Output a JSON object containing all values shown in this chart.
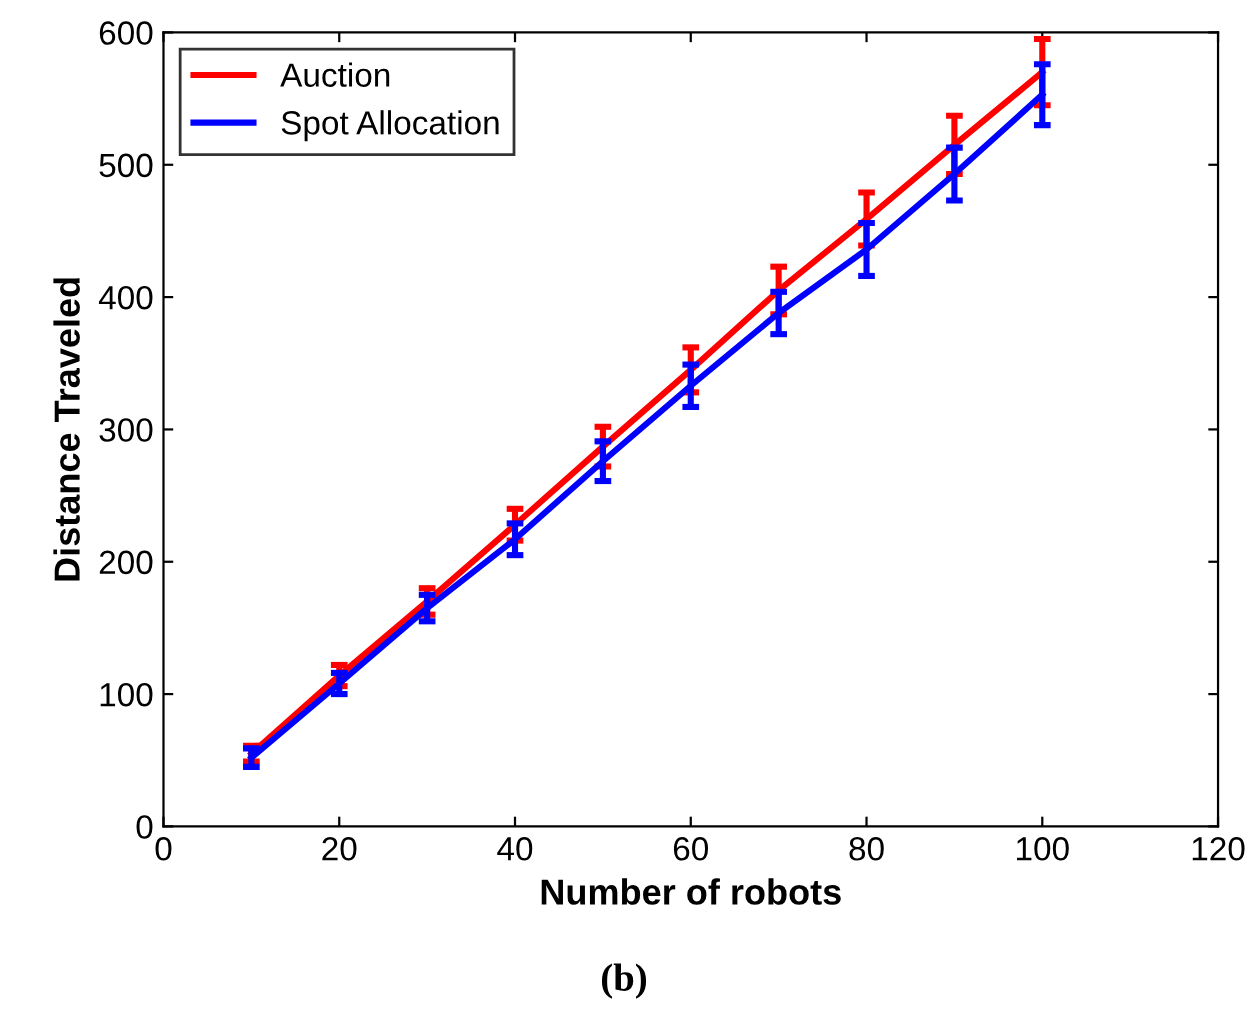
{
  "chart_data": {
    "type": "line",
    "xlabel": "Number of robots",
    "ylabel": "Distance Traveled",
    "annotations": [
      "(b)"
    ],
    "x": [
      10,
      20,
      30,
      40,
      50,
      60,
      70,
      80,
      90,
      100
    ],
    "series": [
      {
        "name": "Auction",
        "color": "#ff0000",
        "values": [
          55,
          114,
          170,
          228,
          287,
          345,
          405,
          459,
          515,
          570
        ],
        "errors": [
          6,
          8,
          10,
          12,
          15,
          17,
          18,
          20,
          22,
          25
        ]
      },
      {
        "name": "Spot Allocation",
        "color": "#0000ff",
        "values": [
          52,
          108,
          165,
          217,
          276,
          333,
          388,
          436,
          493,
          553
        ],
        "errors": [
          7,
          8,
          10,
          12,
          15,
          16,
          16,
          20,
          20,
          23
        ]
      }
    ],
    "xlim": [
      0,
      120
    ],
    "xticks": [
      0,
      20,
      40,
      60,
      80,
      100,
      120
    ],
    "ylim": [
      0,
      600
    ],
    "yticks": [
      0,
      100,
      200,
      300,
      400,
      500,
      600
    ],
    "grid": false,
    "legend": "top left",
    "marker": "none",
    "line_style": "solid"
  }
}
